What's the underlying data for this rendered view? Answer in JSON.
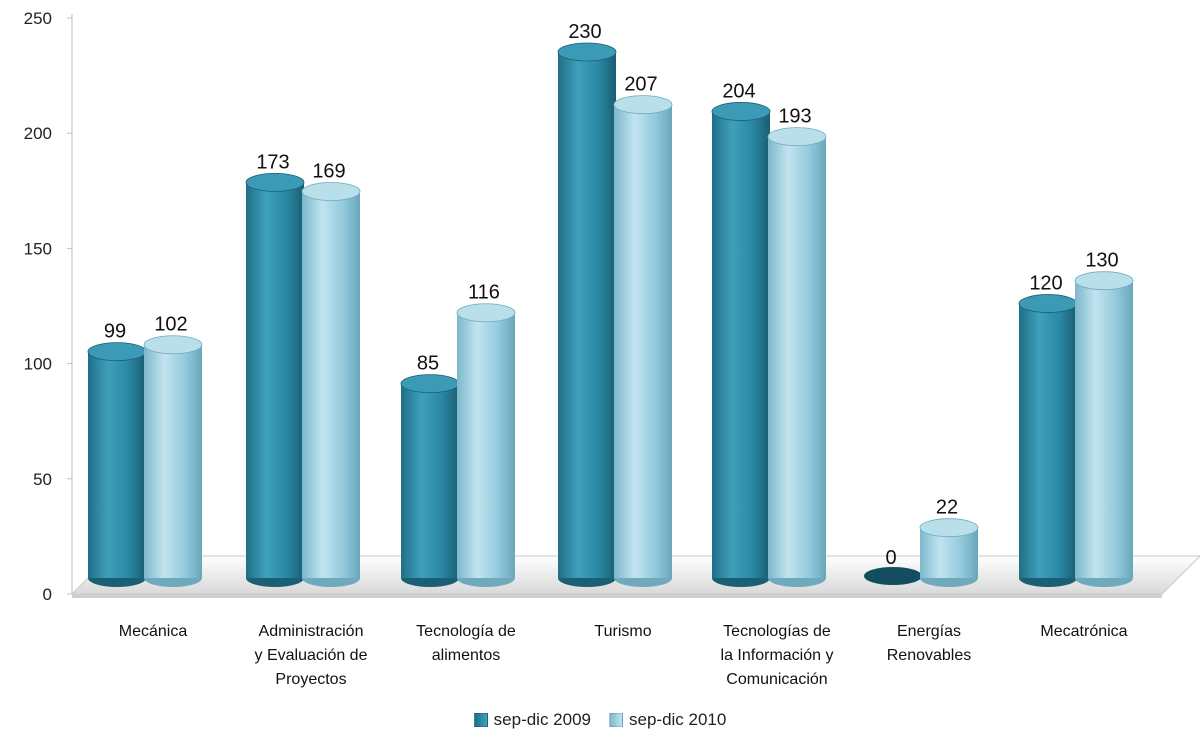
{
  "chart_data": {
    "type": "bar",
    "categories": [
      [
        "Mecánica"
      ],
      [
        "Administración",
        "y Evaluación de",
        "Proyectos"
      ],
      [
        "Tecnología de",
        "alimentos"
      ],
      [
        "Turismo"
      ],
      [
        "Tecnologías de",
        "la Información y",
        "Comunicación"
      ],
      [
        "Energías",
        "Renovables"
      ],
      [
        "Mecatrónica"
      ]
    ],
    "series": [
      {
        "name": "sep-dic 2009",
        "color": "#2b8aa5",
        "values": [
          99,
          173,
          85,
          230,
          204,
          0,
          120
        ]
      },
      {
        "name": "sep-dic 2010",
        "color": "#93cbde",
        "values": [
          102,
          169,
          116,
          207,
          193,
          22,
          130
        ]
      }
    ],
    "y_ticks": [
      "0",
      "50",
      "100",
      "150",
      "200",
      "250"
    ],
    "ylim": [
      0,
      250
    ],
    "grid": false,
    "legend_position": "bottom"
  }
}
